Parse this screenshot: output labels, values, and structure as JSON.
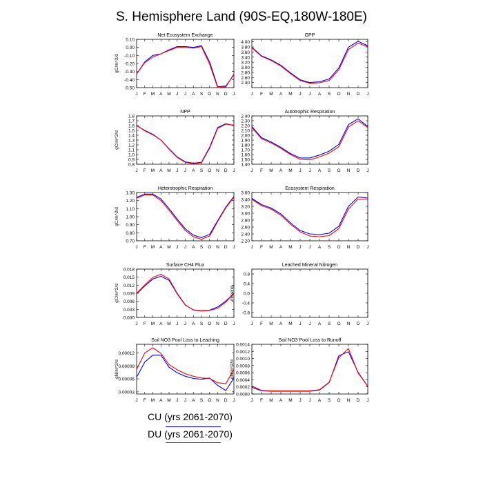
{
  "title": "S. Hemisphere Land (90S-EQ,180W-180E)",
  "legend": [
    {
      "label": "CU (yrs 2061-2070)",
      "color": "#0000ff"
    },
    {
      "label": "DU (yrs 2061-2070)",
      "color": "#ff0000"
    }
  ],
  "chart_data": [
    {
      "type": "line",
      "title": "Net Ecosystem Exchange",
      "ylabel": "gC/m^2/d",
      "ylim": [
        -0.5,
        0.1
      ],
      "yticks": [
        "0.10",
        "0.00",
        "-0.10",
        "-0.20",
        "-0.30",
        "-0.40",
        "-0.50"
      ],
      "ytickvals": [
        0.1,
        0,
        -0.1,
        -0.2,
        -0.3,
        -0.4,
        -0.5
      ],
      "categories": [
        "J",
        "F",
        "M",
        "A",
        "M",
        "J",
        "J",
        "A",
        "S",
        "O",
        "N",
        "D",
        "J"
      ],
      "series": [
        {
          "name": "CU",
          "color": "#0000ff",
          "values": [
            -0.33,
            -0.18,
            -0.1,
            -0.08,
            -0.03,
            0.01,
            0.01,
            0.0,
            0.02,
            -0.18,
            -0.49,
            -0.48,
            -0.34
          ]
        },
        {
          "name": "DU",
          "color": "#ff0000",
          "values": [
            -0.33,
            -0.19,
            -0.12,
            -0.08,
            -0.04,
            0.0,
            0.0,
            -0.01,
            0.01,
            -0.21,
            -0.5,
            -0.49,
            -0.33
          ]
        }
      ]
    },
    {
      "type": "line",
      "title": "GPP",
      "ylabel": "",
      "ylim": [
        2.2,
        4.1
      ],
      "yticks": [
        "4.00",
        "3.80",
        "3.60",
        "3.40",
        "3.20",
        "3.00",
        "2.80",
        "2.60",
        "2.40"
      ],
      "ytickvals": [
        4.0,
        3.8,
        3.6,
        3.4,
        3.2,
        3.0,
        2.8,
        2.6,
        2.4
      ],
      "categories": [
        "J",
        "F",
        "M",
        "A",
        "M",
        "J",
        "J",
        "A",
        "S",
        "O",
        "N",
        "D",
        "J"
      ],
      "series": [
        {
          "name": "CU",
          "color": "#0000ff",
          "values": [
            3.79,
            3.45,
            3.29,
            3.08,
            2.78,
            2.51,
            2.4,
            2.43,
            2.54,
            2.97,
            3.79,
            4.02,
            3.85
          ]
        },
        {
          "name": "DU",
          "color": "#ff0000",
          "values": [
            3.77,
            3.43,
            3.27,
            3.05,
            2.75,
            2.48,
            2.37,
            2.39,
            2.48,
            2.9,
            3.7,
            3.95,
            3.81
          ]
        }
      ]
    },
    {
      "type": "line",
      "title": "NPP",
      "ylabel": "gC/m^2/d",
      "ylim": [
        0.8,
        1.8
      ],
      "yticks": [
        "1.8",
        "1.7",
        "1.6",
        "1.5",
        "1.4",
        "1.3",
        "1.2",
        "1.1",
        "1.0",
        "0.9",
        "0.8"
      ],
      "ytickvals": [
        1.8,
        1.7,
        1.6,
        1.5,
        1.4,
        1.3,
        1.2,
        1.1,
        1.0,
        0.9,
        0.8
      ],
      "categories": [
        "J",
        "F",
        "M",
        "A",
        "M",
        "J",
        "J",
        "A",
        "S",
        "O",
        "N",
        "D",
        "J"
      ],
      "series": [
        {
          "name": "CU",
          "color": "#0000ff",
          "values": [
            1.6,
            1.5,
            1.42,
            1.3,
            1.12,
            0.95,
            0.85,
            0.82,
            0.84,
            1.15,
            1.56,
            1.64,
            1.6
          ]
        },
        {
          "name": "DU",
          "color": "#ff0000",
          "values": [
            1.61,
            1.49,
            1.41,
            1.3,
            1.11,
            0.94,
            0.84,
            0.81,
            0.83,
            1.13,
            1.54,
            1.63,
            1.61
          ]
        }
      ]
    },
    {
      "type": "line",
      "title": "Autotrophic Respiration",
      "ylabel": "",
      "ylim": [
        1.4,
        2.4
      ],
      "yticks": [
        "2.40",
        "2.30",
        "2.20",
        "2.10",
        "2.00",
        "1.90",
        "1.80",
        "1.70",
        "1.60",
        "1.50",
        "1.40"
      ],
      "ytickvals": [
        2.4,
        2.3,
        2.2,
        2.1,
        2.0,
        1.9,
        1.8,
        1.7,
        1.6,
        1.5,
        1.4
      ],
      "categories": [
        "J",
        "F",
        "M",
        "A",
        "M",
        "J",
        "J",
        "A",
        "S",
        "O",
        "N",
        "D",
        "J"
      ],
      "series": [
        {
          "name": "CU",
          "color": "#0000ff",
          "values": [
            2.18,
            1.95,
            1.86,
            1.75,
            1.62,
            1.53,
            1.53,
            1.59,
            1.67,
            1.81,
            2.22,
            2.34,
            2.18
          ]
        },
        {
          "name": "DU",
          "color": "#ff0000",
          "values": [
            2.16,
            1.93,
            1.84,
            1.73,
            1.6,
            1.5,
            1.49,
            1.55,
            1.63,
            1.76,
            2.17,
            2.3,
            2.16
          ]
        }
      ]
    },
    {
      "type": "line",
      "title": "Heterotrophic Respiration",
      "ylabel": "gC/m^2/d",
      "ylim": [
        0.7,
        1.3
      ],
      "yticks": [
        "1.30",
        "1.20",
        "1.10",
        "1.00",
        "0.90",
        "0.80",
        "0.70"
      ],
      "ytickvals": [
        1.3,
        1.2,
        1.1,
        1.0,
        0.9,
        0.8,
        0.7
      ],
      "categories": [
        "J",
        "F",
        "M",
        "A",
        "M",
        "J",
        "J",
        "A",
        "S",
        "O",
        "N",
        "D",
        "J"
      ],
      "series": [
        {
          "name": "CU",
          "color": "#0000ff",
          "values": [
            1.24,
            1.28,
            1.28,
            1.22,
            1.1,
            0.97,
            0.85,
            0.77,
            0.74,
            0.78,
            0.95,
            1.12,
            1.25
          ]
        },
        {
          "name": "DU",
          "color": "#ff0000",
          "values": [
            1.23,
            1.27,
            1.27,
            1.2,
            1.08,
            0.95,
            0.83,
            0.75,
            0.72,
            0.76,
            0.94,
            1.11,
            1.24
          ]
        }
      ]
    },
    {
      "type": "line",
      "title": "Ecosystem Respiration",
      "ylabel": "",
      "ylim": [
        2.2,
        3.6
      ],
      "yticks": [
        "3.60",
        "3.40",
        "3.20",
        "3.00",
        "2.80",
        "2.60",
        "2.40",
        "2.20"
      ],
      "ytickvals": [
        3.6,
        3.4,
        3.2,
        3.0,
        2.8,
        2.6,
        2.4,
        2.2
      ],
      "categories": [
        "J",
        "F",
        "M",
        "A",
        "M",
        "J",
        "J",
        "A",
        "S",
        "O",
        "N",
        "D",
        "J"
      ],
      "series": [
        {
          "name": "CU",
          "color": "#0000ff",
          "values": [
            3.43,
            3.25,
            3.15,
            2.98,
            2.72,
            2.5,
            2.4,
            2.38,
            2.42,
            2.62,
            3.2,
            3.47,
            3.44
          ]
        },
        {
          "name": "DU",
          "color": "#ff0000",
          "values": [
            3.4,
            3.22,
            3.12,
            2.94,
            2.68,
            2.46,
            2.34,
            2.32,
            2.35,
            2.55,
            3.12,
            3.41,
            3.4
          ]
        }
      ]
    },
    {
      "type": "line",
      "title": "Surface CH4 Flux",
      "ylabel": "gC/m^2/d",
      "ylim": [
        0.0,
        0.018
      ],
      "yticks": [
        "0.018",
        "0.015",
        "0.012",
        "0.009",
        "0.006",
        "0.003",
        "0.000"
      ],
      "ytickvals": [
        0.018,
        0.015,
        0.012,
        0.009,
        0.006,
        0.003,
        0.0
      ],
      "categories": [
        "J",
        "F",
        "M",
        "A",
        "M",
        "J",
        "J",
        "A",
        "S",
        "O",
        "N",
        "D",
        "J"
      ],
      "series": [
        {
          "name": "CU",
          "color": "#0000ff",
          "values": [
            0.0088,
            0.0117,
            0.0143,
            0.0153,
            0.0138,
            0.0088,
            0.0046,
            0.0028,
            0.0025,
            0.0027,
            0.0039,
            0.0061,
            0.0089
          ]
        },
        {
          "name": "DU",
          "color": "#ff0000",
          "values": [
            0.009,
            0.0121,
            0.0149,
            0.0161,
            0.0143,
            0.009,
            0.0047,
            0.0027,
            0.0024,
            0.0026,
            0.0034,
            0.0057,
            0.009
          ]
        }
      ]
    },
    {
      "type": "line",
      "title": "Leached Mineral Nitrogen",
      "ylabel": "missing",
      "ylim": [
        -1,
        1
      ],
      "yticks": [
        "0.8",
        "0.4",
        "0.0",
        "-0.4",
        "-0.8"
      ],
      "ytickvals": [
        0.8,
        0.4,
        0.0,
        -0.4,
        -0.8
      ],
      "categories": [
        "J",
        "F",
        "M",
        "A",
        "M",
        "J",
        "J",
        "A",
        "S",
        "O",
        "N",
        "D",
        "J"
      ],
      "series": []
    },
    {
      "type": "line",
      "title": "Soil NO3 Pool Loss to Leaching",
      "ylabel": "gN/m^2/d",
      "ylim": [
        2.5e-05,
        0.00014
      ],
      "yticks": [
        "0.00012",
        "0.00009",
        "0.00006",
        "0.00003"
      ],
      "ytickvals": [
        0.00012,
        9e-05,
        6e-05,
        3e-05
      ],
      "categories": [
        "J",
        "F",
        "M",
        "A",
        "M",
        "J",
        "J",
        "A",
        "S",
        "O",
        "N",
        "D",
        "J"
      ],
      "series": [
        {
          "name": "CU",
          "color": "#0000ff",
          "values": [
            6.4e-05,
            9.9e-05,
            0.000115,
            0.000115,
            8.7e-05,
            7.4e-05,
            6.6e-05,
            6.1e-05,
            5.9e-05,
            6.2e-05,
            4.5e-05,
            3.3e-05,
            6.2e-05
          ]
        },
        {
          "name": "DU",
          "color": "#ff0000",
          "values": [
            8.2e-05,
            0.00012,
            0.000132,
            0.000119,
            9.3e-05,
            8.1e-05,
            7.2e-05,
            6.6e-05,
            6.2e-05,
            6.1e-05,
            5.1e-05,
            4.9e-05,
            8.2e-05
          ]
        }
      ]
    },
    {
      "type": "line",
      "title": "Soil NO3 Pool Loss to Runoff",
      "ylabel": "gN/m^2/d",
      "ylim": [
        0,
        0.0014
      ],
      "yticks": [
        "0.0014",
        "0.0012",
        "0.0010",
        "0.0008",
        "0.0006",
        "0.0004",
        "0.0002",
        "0.0000"
      ],
      "ytickvals": [
        0.0014,
        0.0012,
        0.001,
        0.0008,
        0.0006,
        0.0004,
        0.0002,
        0.0
      ],
      "categories": [
        "J",
        "F",
        "M",
        "A",
        "M",
        "J",
        "J",
        "A",
        "S",
        "O",
        "N",
        "D",
        "J"
      ],
      "series": [
        {
          "name": "CU",
          "color": "#0000ff",
          "values": [
            0.00019,
            9e-05,
            8e-05,
            8e-05,
            8e-05,
            8e-05,
            8e-05,
            0.00011,
            0.00032,
            0.00108,
            0.00119,
            0.00061,
            0.00021
          ]
        },
        {
          "name": "DU",
          "color": "#ff0000",
          "values": [
            0.00023,
            0.0001,
            9e-05,
            9e-05,
            9e-05,
            9e-05,
            9e-05,
            0.00012,
            0.00033,
            0.00102,
            0.00128,
            0.00059,
            0.00022
          ]
        }
      ]
    }
  ]
}
